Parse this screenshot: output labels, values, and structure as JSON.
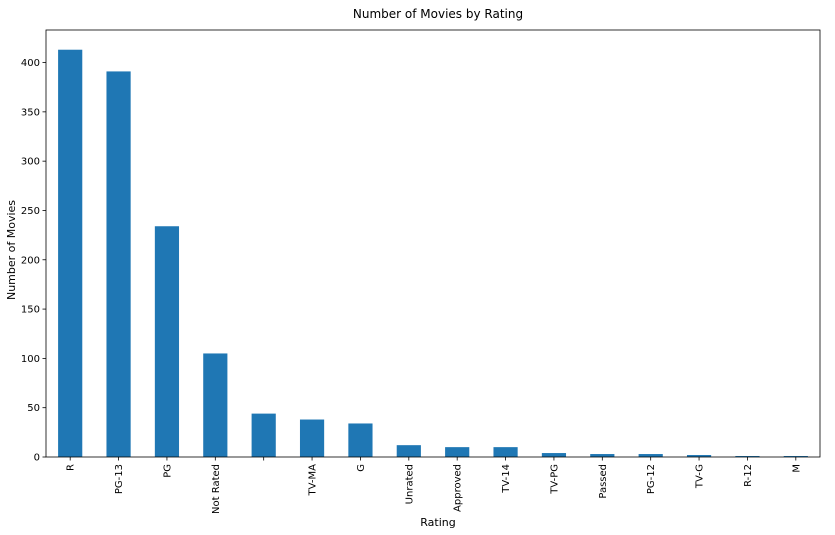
{
  "chart_data": {
    "type": "bar",
    "title": "Number of Movies by Rating",
    "xlabel": "Rating",
    "ylabel": "Number of Movies",
    "categories": [
      "R",
      "PG-13",
      "PG",
      "Not Rated",
      "",
      "TV-MA",
      "G",
      "Unrated",
      "Approved",
      "TV-14",
      "TV-PG",
      "Passed",
      "PG-12",
      "TV-G",
      "R-12",
      "M"
    ],
    "values": [
      413,
      391,
      234,
      105,
      44,
      38,
      34,
      12,
      10,
      10,
      4,
      3,
      3,
      2,
      1,
      1
    ],
    "ylim": [
      0,
      433
    ],
    "yticks": [
      0,
      50,
      100,
      150,
      200,
      250,
      300,
      350,
      400
    ],
    "bar_color": "#1f77b4",
    "grid": false,
    "legend": "none"
  }
}
